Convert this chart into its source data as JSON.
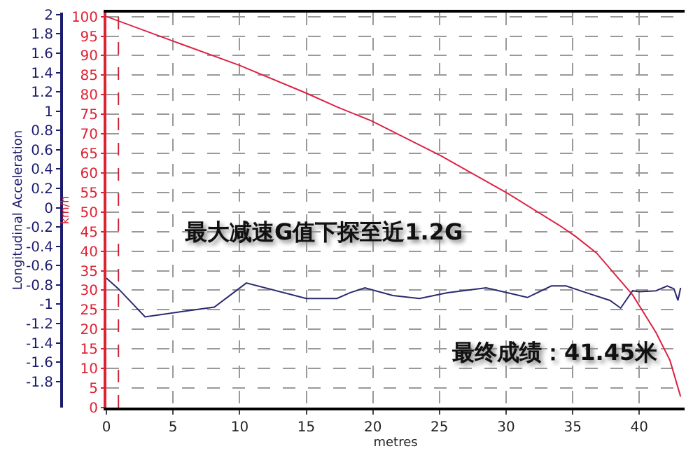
{
  "chart_data": {
    "type": "line",
    "xlabel": "metres",
    "ylabel": "Longitudinal Acceleration",
    "y2label": "km/h",
    "xlim": [
      0,
      43.4
    ],
    "xticks": [
      0,
      5,
      10,
      15,
      20,
      25,
      30,
      35,
      40
    ],
    "ylim": [
      -2.07,
      2.02
    ],
    "yticks": [
      -1.8,
      -1.6,
      -1.4,
      -1.2,
      -1,
      -0.8,
      -0.6,
      -0.4,
      -0.2,
      0,
      0.2,
      0.4,
      0.6,
      0.8,
      1,
      1.2,
      1.4,
      1.6,
      1.8,
      2
    ],
    "y2lim": [
      0,
      101
    ],
    "y2ticks": [
      0,
      5,
      10,
      15,
      20,
      25,
      30,
      35,
      40,
      45,
      50,
      55,
      60,
      65,
      70,
      75,
      80,
      85,
      90,
      95,
      100
    ],
    "grid": true,
    "marker": "none",
    "line_style": "solid",
    "series": [
      {
        "color": "#dd2244",
        "axis": "y2",
        "x": [
          0,
          5.1,
          10,
          15,
          17.3,
          19.9,
          25.1,
          30.1,
          34,
          35.2,
          36.8,
          39.5,
          41.25,
          42.3,
          43.1
        ],
        "values": [
          100,
          93.6,
          87.5,
          80.4,
          76.9,
          73.3,
          64.4,
          54.8,
          46.6,
          43.8,
          39.5,
          28.8,
          19.2,
          12.1,
          2.8
        ]
      },
      {
        "color": "#2a2a6e",
        "x": [
          0,
          0.9,
          2.9,
          8.1,
          10.5,
          15,
          17.3,
          18.3,
          19.4,
          21.5,
          23.5,
          25.6,
          28.5,
          30.1,
          31.6,
          33.4,
          34.5,
          36,
          37.8,
          38.6,
          39.5,
          40,
          41.25,
          42.1,
          42.6,
          42.9,
          43.1
        ],
        "values": [
          -0.73,
          -0.84,
          -1.13,
          -1.03,
          -0.78,
          -0.94,
          -0.94,
          -0.88,
          -0.83,
          -0.91,
          -0.94,
          -0.88,
          -0.83,
          -0.88,
          -0.93,
          -0.81,
          -0.81,
          -0.88,
          -0.96,
          -1.04,
          -0.86,
          -0.87,
          -0.86,
          -0.81,
          -0.84,
          -0.96,
          -0.83
        ]
      }
    ],
    "ref_lines": [
      {
        "axis": "x",
        "value": 0.9,
        "color": "#cc2233",
        "line_style": "dashed"
      }
    ],
    "annotations": [
      "最大减速G值下探至近1.2G",
      "最终成绩：41.45米"
    ]
  }
}
